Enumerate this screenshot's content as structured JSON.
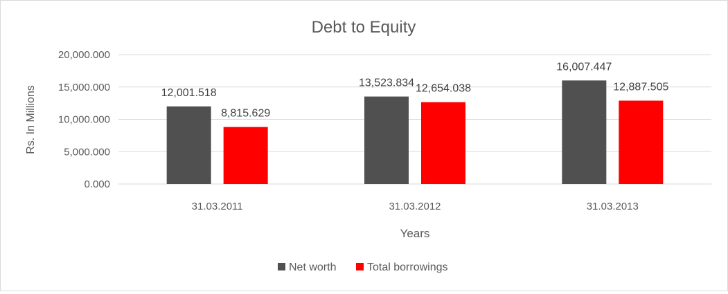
{
  "chart_data": {
    "type": "bar",
    "title": "Debt to Equity",
    "xlabel": "Years",
    "ylabel": "Rs. In Millions",
    "categories": [
      "31.03.2011",
      "31.03.2012",
      "31.03.2013"
    ],
    "series": [
      {
        "name": "Net worth",
        "color": "#505050",
        "values": [
          12001.518,
          13523.834,
          16007.447
        ],
        "labels": [
          "12,001.518",
          "13,523.834",
          "16,007.447"
        ]
      },
      {
        "name": "Total borrowings",
        "color": "#ff0000",
        "values": [
          8815.629,
          12654.038,
          12887.505
        ],
        "labels": [
          "8,815.629",
          "12,654.038",
          "12,887.505"
        ]
      }
    ],
    "ylim": [
      0,
      20000
    ],
    "yticks": [
      0,
      5000,
      10000,
      15000,
      20000
    ],
    "ytick_labels": [
      "0.000",
      "5,000.000",
      "10,000.000",
      "15,000.000",
      "20,000.000"
    ],
    "grid": true,
    "legend_position": "bottom",
    "gridline_color": "#d9d9d9",
    "text_color": "#595959"
  }
}
